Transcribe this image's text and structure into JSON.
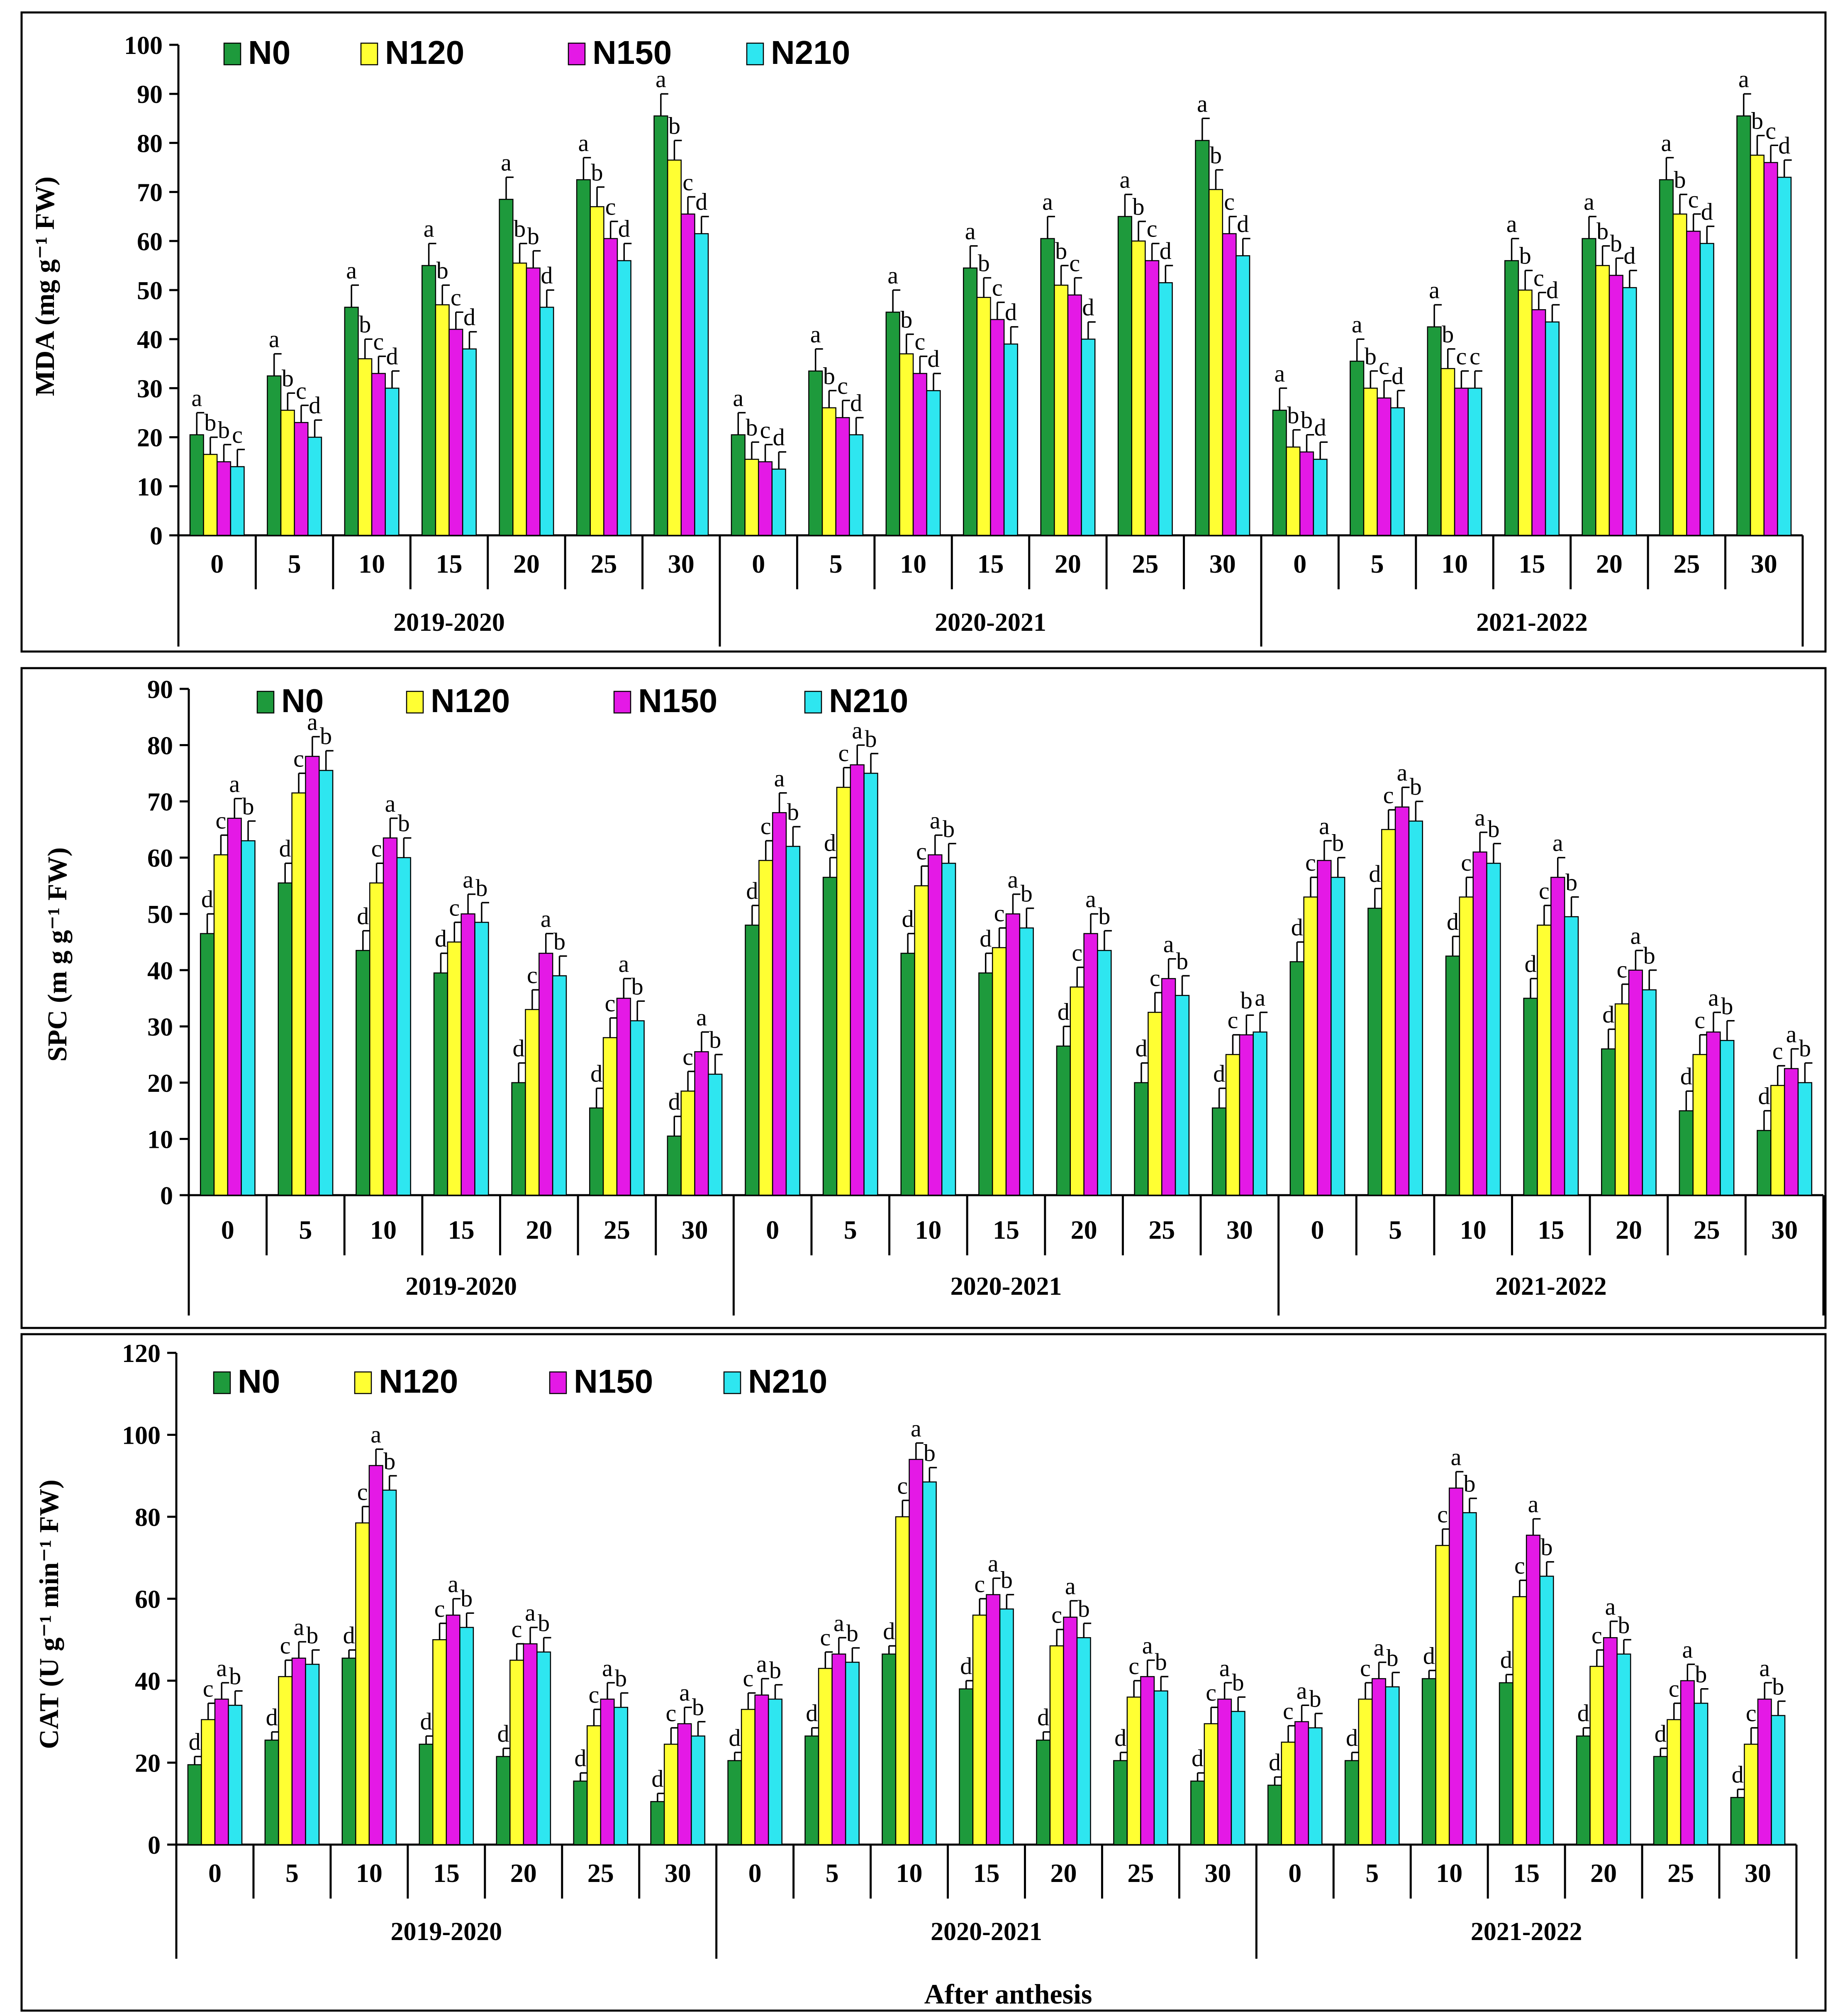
{
  "colors": {
    "N0": "#1e9a3c",
    "N120": "#ffff33",
    "N150": "#e419e6",
    "N210": "#2ee6f0",
    "axis": "#000000"
  },
  "legend": [
    "N0",
    "N120",
    "N150",
    "N210"
  ],
  "footer": {
    "xlabel": "After anthesis"
  },
  "chart_data": [
    {
      "type": "bar",
      "ylabel": "MDA (mg g⁻¹ FW)",
      "ylim": [
        0,
        100
      ],
      "yticks": [
        0,
        10,
        20,
        30,
        40,
        50,
        60,
        70,
        80,
        90,
        100
      ],
      "years": [
        "2019-2020",
        "2020-2021",
        "2021-2022"
      ],
      "days": [
        "0",
        "5",
        "10",
        "15",
        "20",
        "25",
        "30"
      ],
      "series_names": [
        "N0",
        "N120",
        "N150",
        "N210"
      ],
      "values": [
        [
          [
            20.5,
            16.5,
            15,
            14
          ],
          [
            32.5,
            25.5,
            23,
            20
          ],
          [
            46.5,
            36,
            33,
            30
          ],
          [
            55,
            47,
            42,
            38
          ],
          [
            68.5,
            55.5,
            54.5,
            46.5
          ],
          [
            72.5,
            67,
            60.5,
            56
          ],
          [
            85.5,
            76.5,
            65.5,
            61.5
          ]
        ],
        [
          [
            20.5,
            15.5,
            15,
            13.5
          ],
          [
            33.5,
            26,
            24,
            20.5
          ],
          [
            45.5,
            37,
            33,
            29.5
          ],
          [
            54.5,
            48.5,
            44,
            39
          ],
          [
            60.5,
            51,
            49,
            40
          ],
          [
            65,
            60,
            56,
            51.5
          ],
          [
            80.5,
            70.5,
            61.5,
            57
          ]
        ],
        [
          [
            25.5,
            18,
            17,
            15.5
          ],
          [
            35.5,
            30,
            28,
            26
          ],
          [
            42.5,
            34,
            30,
            30
          ],
          [
            56,
            50,
            46,
            43.5
          ],
          [
            60.5,
            55,
            53,
            50.5
          ],
          [
            72.5,
            65.5,
            62,
            59.5
          ],
          [
            85.5,
            77.5,
            76,
            73
          ]
        ]
      ],
      "errors": [
        [
          [
            4.5,
            3.5,
            3.5,
            3.5
          ],
          [
            4.5,
            3.5,
            3.5,
            3.5
          ],
          [
            4.5,
            4,
            3.5,
            3.5
          ],
          [
            4.5,
            4,
            3.5,
            3.5
          ],
          [
            4.5,
            4,
            3.5,
            3.5
          ],
          [
            4.5,
            4,
            3.5,
            3.5
          ],
          [
            4.5,
            4,
            3.5,
            3.5
          ]
        ],
        [
          [
            4.5,
            3.5,
            3.5,
            3.5
          ],
          [
            4.5,
            3.5,
            3.5,
            3.5
          ],
          [
            4.5,
            4,
            3.5,
            3.5
          ],
          [
            4.5,
            4,
            3.5,
            3.5
          ],
          [
            4.5,
            4,
            3.5,
            3.5
          ],
          [
            4.5,
            4,
            3.5,
            3.5
          ],
          [
            4.5,
            4,
            3.5,
            3.5
          ]
        ],
        [
          [
            4.5,
            3.5,
            3.5,
            3.5
          ],
          [
            4.5,
            3.5,
            3.5,
            3.5
          ],
          [
            4.5,
            4,
            3.5,
            3.5
          ],
          [
            4.5,
            4,
            3.5,
            3.5
          ],
          [
            4.5,
            4,
            3.5,
            3.5
          ],
          [
            4.5,
            4,
            3.5,
            3.5
          ],
          [
            4.5,
            4,
            3.5,
            3.5
          ]
        ]
      ],
      "letters": [
        [
          [
            "a",
            "b",
            "b",
            "c"
          ],
          [
            "a",
            "b",
            "c",
            "d"
          ],
          [
            "a",
            "b",
            "c",
            "d"
          ],
          [
            "a",
            "b",
            "c",
            "d"
          ],
          [
            "a",
            "b",
            "b",
            "d"
          ],
          [
            "a",
            "b",
            "c",
            "d"
          ],
          [
            "a",
            "b",
            "c",
            "d"
          ]
        ],
        [
          [
            "a",
            "b",
            "c",
            "d"
          ],
          [
            "a",
            "b",
            "c",
            "d"
          ],
          [
            "a",
            "b",
            "c",
            "d"
          ],
          [
            "a",
            "b",
            "c",
            "d"
          ],
          [
            "a",
            "b",
            "c",
            "d"
          ],
          [
            "a",
            "b",
            "c",
            "d"
          ],
          [
            "a",
            "b",
            "c",
            "d"
          ]
        ],
        [
          [
            "a",
            "b",
            "b",
            "d"
          ],
          [
            "a",
            "b",
            "c",
            "d"
          ],
          [
            "a",
            "b",
            "c",
            "c"
          ],
          [
            "a",
            "b",
            "c",
            "d"
          ],
          [
            "a",
            "b",
            "b",
            "d"
          ],
          [
            "a",
            "b",
            "c",
            "d"
          ],
          [
            "a",
            "b",
            "c",
            "d"
          ]
        ]
      ]
    },
    {
      "type": "bar",
      "ylabel": "SPC (m g g⁻¹ FW)",
      "ylim": [
        0,
        90
      ],
      "yticks": [
        0,
        10,
        20,
        30,
        40,
        50,
        60,
        70,
        80,
        90
      ],
      "years": [
        "2019-2020",
        "2020-2021",
        "2021-2022"
      ],
      "days": [
        "0",
        "5",
        "10",
        "15",
        "20",
        "25",
        "30"
      ],
      "series_names": [
        "N0",
        "N120",
        "N150",
        "N210"
      ],
      "values": [
        [
          [
            46.5,
            60.5,
            67,
            63
          ],
          [
            55.5,
            71.5,
            78,
            75.5
          ],
          [
            43.5,
            55.5,
            63.5,
            60
          ],
          [
            39.5,
            45,
            50,
            48.5
          ],
          [
            20,
            33,
            43,
            39
          ],
          [
            15.5,
            28,
            35,
            31
          ],
          [
            10.5,
            18.5,
            25.5,
            21.5
          ]
        ],
        [
          [
            48,
            59.5,
            68,
            62
          ],
          [
            56.5,
            72.5,
            76.5,
            75
          ],
          [
            43,
            55,
            60.5,
            59
          ],
          [
            39.5,
            44,
            50,
            47.5
          ],
          [
            26.5,
            37,
            46.5,
            43.5
          ],
          [
            20,
            32.5,
            38.5,
            35.5
          ],
          [
            15.5,
            25,
            28.5,
            29
          ]
        ],
        [
          [
            41.5,
            53,
            59.5,
            56.5
          ],
          [
            51,
            65,
            69,
            66.5
          ],
          [
            42.5,
            53,
            61,
            59
          ],
          [
            35,
            48,
            56.5,
            49.5
          ],
          [
            26,
            34,
            40,
            36.5
          ],
          [
            15,
            25,
            29,
            27.5
          ],
          [
            11.5,
            19.5,
            22.5,
            20
          ]
        ]
      ],
      "errors": [
        [
          [
            3.5,
            3.5,
            3.5,
            3.5
          ],
          [
            3.5,
            3.5,
            3.5,
            3.5
          ],
          [
            3.5,
            3.5,
            3.5,
            3.5
          ],
          [
            3.5,
            3.5,
            3.5,
            3.5
          ],
          [
            3.5,
            3.5,
            3.5,
            3.5
          ],
          [
            3.5,
            3.5,
            3.5,
            3.5
          ],
          [
            3.5,
            3.5,
            3.5,
            3.5
          ]
        ],
        [
          [
            3.5,
            3.5,
            3.5,
            3.5
          ],
          [
            3.5,
            3.5,
            3.5,
            3.5
          ],
          [
            3.5,
            3.5,
            3.5,
            3.5
          ],
          [
            3.5,
            3.5,
            3.5,
            3.5
          ],
          [
            3.5,
            3.5,
            3.5,
            3.5
          ],
          [
            3.5,
            3.5,
            3.5,
            3.5
          ],
          [
            3.5,
            3.5,
            3.5,
            3.5
          ]
        ],
        [
          [
            3.5,
            3.5,
            3.5,
            3.5
          ],
          [
            3.5,
            3.5,
            3.5,
            3.5
          ],
          [
            3.5,
            3.5,
            3.5,
            3.5
          ],
          [
            3.5,
            3.5,
            3.5,
            3.5
          ],
          [
            3.5,
            3.5,
            3.5,
            3.5
          ],
          [
            3.5,
            3.5,
            3.5,
            3.5
          ],
          [
            3.5,
            3.5,
            3.5,
            3.5
          ]
        ]
      ],
      "letters": [
        [
          [
            "d",
            "c",
            "a",
            "b"
          ],
          [
            "d",
            "c",
            "a",
            "b"
          ],
          [
            "d",
            "c",
            "a",
            "b"
          ],
          [
            "d",
            "c",
            "a",
            "b"
          ],
          [
            "d",
            "c",
            "a",
            "b"
          ],
          [
            "d",
            "c",
            "a",
            "b"
          ],
          [
            "d",
            "c",
            "a",
            "b"
          ]
        ],
        [
          [
            "d",
            "c",
            "a",
            "b"
          ],
          [
            "d",
            "c",
            "a",
            "b"
          ],
          [
            "d",
            "c",
            "a",
            "b"
          ],
          [
            "d",
            "c",
            "a",
            "b"
          ],
          [
            "d",
            "c",
            "a",
            "b"
          ],
          [
            "d",
            "c",
            "a",
            "b"
          ],
          [
            "d",
            "c",
            "b",
            "a"
          ]
        ],
        [
          [
            "d",
            "c",
            "a",
            "b"
          ],
          [
            "d",
            "c",
            "a",
            "b"
          ],
          [
            "d",
            "c",
            "a",
            "b"
          ],
          [
            "d",
            "c",
            "a",
            "b"
          ],
          [
            "d",
            "c",
            "a",
            "b"
          ],
          [
            "d",
            "c",
            "a",
            "b"
          ],
          [
            "d",
            "c",
            "a",
            "b"
          ]
        ]
      ]
    },
    {
      "type": "bar",
      "ylabel": "CAT (U g⁻¹ min⁻¹ FW)",
      "ylim": [
        0,
        120
      ],
      "yticks": [
        0,
        20,
        40,
        60,
        80,
        100,
        120
      ],
      "years": [
        "2019-2020",
        "2020-2021",
        "2021-2022"
      ],
      "days": [
        "0",
        "5",
        "10",
        "15",
        "20",
        "25",
        "30"
      ],
      "series_names": [
        "N0",
        "N120",
        "N150",
        "N210"
      ],
      "values": [
        [
          [
            19.5,
            30.5,
            35.5,
            34
          ],
          [
            25.5,
            41,
            45.5,
            44
          ],
          [
            45.5,
            78.5,
            92.5,
            86.5
          ],
          [
            24.5,
            50,
            56,
            53
          ],
          [
            21.5,
            45,
            49,
            47
          ],
          [
            15.5,
            29,
            35.5,
            33.5
          ],
          [
            10.5,
            24.5,
            29.5,
            26.5
          ]
        ],
        [
          [
            20.5,
            33,
            36.5,
            35.5
          ],
          [
            26.5,
            43,
            46.5,
            44.5
          ],
          [
            46.5,
            80,
            94,
            88.5
          ],
          [
            38,
            56,
            61,
            57.5
          ],
          [
            25.5,
            48.5,
            55.5,
            50.5
          ],
          [
            20.5,
            36,
            41,
            37.5
          ],
          [
            15.5,
            29.5,
            35.5,
            32.5
          ]
        ],
        [
          [
            14.5,
            25,
            30,
            28.5
          ],
          [
            20.5,
            35.5,
            40.5,
            38.5
          ],
          [
            40.5,
            73,
            87,
            81
          ],
          [
            39.5,
            60.5,
            75.5,
            65.5
          ],
          [
            26.5,
            43.5,
            50.5,
            46.5
          ],
          [
            21.5,
            30.5,
            40,
            34.5
          ],
          [
            11.5,
            24.5,
            35.5,
            31.5
          ]
        ]
      ],
      "errors": [
        [
          [
            2,
            4,
            4,
            3.5
          ],
          [
            2,
            4,
            4,
            3.5
          ],
          [
            2,
            4,
            4,
            3.5
          ],
          [
            2,
            4,
            4,
            3.5
          ],
          [
            2,
            4,
            4,
            3.5
          ],
          [
            2,
            4,
            4,
            3.5
          ],
          [
            2,
            4,
            4,
            3.5
          ]
        ],
        [
          [
            2,
            4,
            4,
            3.5
          ],
          [
            2,
            4,
            4,
            3.5
          ],
          [
            2,
            4,
            4,
            3.5
          ],
          [
            2,
            4,
            4,
            3.5
          ],
          [
            2,
            4,
            4,
            3.5
          ],
          [
            2,
            4,
            4,
            3.5
          ],
          [
            2,
            4,
            4,
            3.5
          ]
        ],
        [
          [
            2,
            4,
            4,
            3.5
          ],
          [
            2,
            4,
            4,
            3.5
          ],
          [
            2,
            4,
            4,
            3.5
          ],
          [
            2,
            4,
            4,
            3.5
          ],
          [
            2,
            4,
            4,
            3.5
          ],
          [
            2,
            4,
            4,
            3.5
          ],
          [
            2,
            4,
            4,
            3.5
          ]
        ]
      ],
      "letters": [
        [
          [
            "d",
            "c",
            "a",
            "b"
          ],
          [
            "d",
            "c",
            "a",
            "b"
          ],
          [
            "d",
            "c",
            "a",
            "b"
          ],
          [
            "d",
            "c",
            "a",
            "b"
          ],
          [
            "d",
            "c",
            "a",
            "b"
          ],
          [
            "d",
            "c",
            "a",
            "b"
          ],
          [
            "d",
            "c",
            "a",
            "b"
          ]
        ],
        [
          [
            "d",
            "c",
            "a",
            "b"
          ],
          [
            "d",
            "c",
            "a",
            "b"
          ],
          [
            "d",
            "c",
            "a",
            "b"
          ],
          [
            "d",
            "c",
            "a",
            "b"
          ],
          [
            "d",
            "c",
            "a",
            "b"
          ],
          [
            "d",
            "c",
            "a",
            "b"
          ],
          [
            "d",
            "c",
            "a",
            "b"
          ]
        ],
        [
          [
            "d",
            "c",
            "a",
            "b"
          ],
          [
            "d",
            "c",
            "a",
            "b"
          ],
          [
            "d",
            "c",
            "a",
            "b"
          ],
          [
            "d",
            "c",
            "a",
            "b"
          ],
          [
            "d",
            "c",
            "a",
            "b"
          ],
          [
            "d",
            "c",
            "a",
            "b"
          ],
          [
            "d",
            "c",
            "a",
            "b"
          ]
        ]
      ]
    }
  ]
}
